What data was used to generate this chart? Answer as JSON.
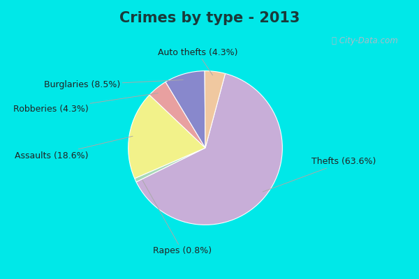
{
  "title": "Crimes by type - 2013",
  "labels": [
    "Thefts",
    "Assaults",
    "Rapes",
    "Burglaries",
    "Robberies",
    "Auto thefts"
  ],
  "values": [
    63.6,
    18.6,
    0.8,
    8.5,
    4.3,
    4.3
  ],
  "colors": [
    "#c8aed8",
    "#f2f28a",
    "#a8d8b8",
    "#8888cc",
    "#e8a0a0",
    "#f0c8a0"
  ],
  "label_format": [
    "Thefts (63.6%)",
    "Assaults (18.6%)",
    "Rapes (0.8%)",
    "Burglaries (8.5%)",
    "Robberies (4.3%)",
    "Auto thefts (4.3%)"
  ],
  "background_cyan": "#00e8e8",
  "background_main": "#ceeada",
  "title_fontsize": 15,
  "label_fontsize": 9,
  "startangle": 75
}
